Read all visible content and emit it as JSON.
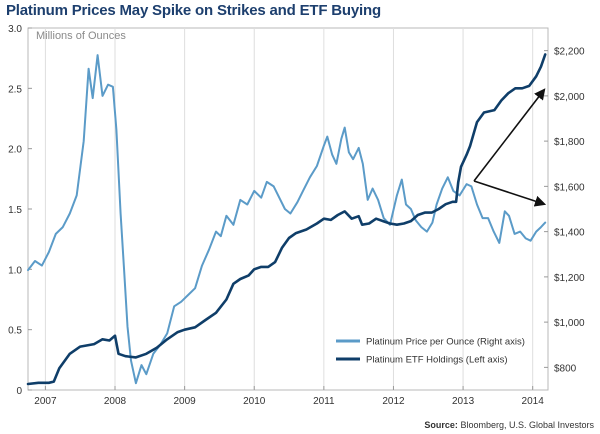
{
  "chart_data": {
    "type": "line",
    "title": "Platinum Prices May Spike on Strikes and ETF Buying",
    "ylabel_left": "Millions of Ounces",
    "ylim_left": [
      0,
      3.0
    ],
    "ylim_right": [
      700,
      2300
    ],
    "xlim": [
      2006.75,
      2014.22
    ],
    "left_ticks": [
      {
        "v": 0,
        "label": "0"
      },
      {
        "v": 0.5,
        "label": "0.5"
      },
      {
        "v": 1.0,
        "label": "1.0"
      },
      {
        "v": 1.5,
        "label": "1.5"
      },
      {
        "v": 2.0,
        "label": "2.0"
      },
      {
        "v": 2.5,
        "label": "2.5"
      },
      {
        "v": 3.0,
        "label": "3.0"
      }
    ],
    "right_ticks": [
      {
        "v": 800,
        "label": "$800"
      },
      {
        "v": 1000,
        "label": "$1,000"
      },
      {
        "v": 1200,
        "label": "$1,200"
      },
      {
        "v": 1400,
        "label": "$1,400"
      },
      {
        "v": 1600,
        "label": "$1,600"
      },
      {
        "v": 1800,
        "label": "$1,800"
      },
      {
        "v": 2000,
        "label": "$2,000"
      },
      {
        "v": 2200,
        "label": "$2,200"
      }
    ],
    "x_ticks": [
      {
        "v": 2007,
        "label": "2007"
      },
      {
        "v": 2008,
        "label": "2008"
      },
      {
        "v": 2009,
        "label": "2009"
      },
      {
        "v": 2010,
        "label": "2010"
      },
      {
        "v": 2011,
        "label": "2011"
      },
      {
        "v": 2012,
        "label": "2012"
      },
      {
        "v": 2013,
        "label": "2013"
      },
      {
        "v": 2014,
        "label": "2014"
      }
    ],
    "series": [
      {
        "name": "Platinum Price per Ounce (Right axis)",
        "axis": "right",
        "color": "#5b9bc8",
        "points": [
          [
            2006.75,
            1230
          ],
          [
            2006.85,
            1270
          ],
          [
            2006.95,
            1250
          ],
          [
            2007.05,
            1310
          ],
          [
            2007.15,
            1390
          ],
          [
            2007.25,
            1420
          ],
          [
            2007.35,
            1480
          ],
          [
            2007.45,
            1560
          ],
          [
            2007.55,
            1800
          ],
          [
            2007.62,
            2120
          ],
          [
            2007.68,
            1990
          ],
          [
            2007.75,
            2180
          ],
          [
            2007.82,
            2000
          ],
          [
            2007.9,
            2050
          ],
          [
            2007.97,
            2040
          ],
          [
            2008.02,
            1850
          ],
          [
            2008.08,
            1480
          ],
          [
            2008.13,
            1230
          ],
          [
            2008.18,
            980
          ],
          [
            2008.23,
            830
          ],
          [
            2008.3,
            730
          ],
          [
            2008.38,
            810
          ],
          [
            2008.45,
            770
          ],
          [
            2008.55,
            860
          ],
          [
            2008.65,
            900
          ],
          [
            2008.75,
            950
          ],
          [
            2008.85,
            1070
          ],
          [
            2008.95,
            1090
          ],
          [
            2009.05,
            1120
          ],
          [
            2009.15,
            1150
          ],
          [
            2009.25,
            1250
          ],
          [
            2009.35,
            1320
          ],
          [
            2009.45,
            1400
          ],
          [
            2009.52,
            1380
          ],
          [
            2009.6,
            1470
          ],
          [
            2009.7,
            1430
          ],
          [
            2009.8,
            1540
          ],
          [
            2009.9,
            1520
          ],
          [
            2010.0,
            1580
          ],
          [
            2010.1,
            1550
          ],
          [
            2010.18,
            1620
          ],
          [
            2010.28,
            1600
          ],
          [
            2010.36,
            1550
          ],
          [
            2010.44,
            1500
          ],
          [
            2010.52,
            1480
          ],
          [
            2010.62,
            1530
          ],
          [
            2010.7,
            1580
          ],
          [
            2010.8,
            1640
          ],
          [
            2010.9,
            1690
          ],
          [
            2011.0,
            1780
          ],
          [
            2011.05,
            1820
          ],
          [
            2011.12,
            1740
          ],
          [
            2011.18,
            1700
          ],
          [
            2011.25,
            1810
          ],
          [
            2011.3,
            1860
          ],
          [
            2011.36,
            1750
          ],
          [
            2011.42,
            1720
          ],
          [
            2011.5,
            1770
          ],
          [
            2011.56,
            1700
          ],
          [
            2011.63,
            1540
          ],
          [
            2011.7,
            1590
          ],
          [
            2011.78,
            1540
          ],
          [
            2011.86,
            1460
          ],
          [
            2011.95,
            1430
          ],
          [
            2012.05,
            1560
          ],
          [
            2012.12,
            1630
          ],
          [
            2012.18,
            1520
          ],
          [
            2012.25,
            1500
          ],
          [
            2012.32,
            1450
          ],
          [
            2012.4,
            1420
          ],
          [
            2012.48,
            1400
          ],
          [
            2012.56,
            1440
          ],
          [
            2012.62,
            1520
          ],
          [
            2012.7,
            1590
          ],
          [
            2012.78,
            1640
          ],
          [
            2012.86,
            1580
          ],
          [
            2012.95,
            1560
          ],
          [
            2013.05,
            1610
          ],
          [
            2013.12,
            1600
          ],
          [
            2013.2,
            1520
          ],
          [
            2013.28,
            1460
          ],
          [
            2013.36,
            1460
          ],
          [
            2013.44,
            1400
          ],
          [
            2013.52,
            1350
          ],
          [
            2013.6,
            1490
          ],
          [
            2013.66,
            1470
          ],
          [
            2013.74,
            1390
          ],
          [
            2013.82,
            1400
          ],
          [
            2013.9,
            1370
          ],
          [
            2013.97,
            1360
          ],
          [
            2014.05,
            1400
          ],
          [
            2014.12,
            1420
          ],
          [
            2014.18,
            1440
          ]
        ]
      },
      {
        "name": "Platinum ETF Holdings (Left axis)",
        "axis": "left",
        "color": "#0f3e69",
        "points": [
          [
            2006.75,
            0.05
          ],
          [
            2006.9,
            0.06
          ],
          [
            2007.05,
            0.06
          ],
          [
            2007.12,
            0.07
          ],
          [
            2007.2,
            0.18
          ],
          [
            2007.35,
            0.3
          ],
          [
            2007.5,
            0.36
          ],
          [
            2007.7,
            0.38
          ],
          [
            2007.82,
            0.42
          ],
          [
            2007.92,
            0.41
          ],
          [
            2008.0,
            0.45
          ],
          [
            2008.05,
            0.3
          ],
          [
            2008.15,
            0.28
          ],
          [
            2008.3,
            0.27
          ],
          [
            2008.45,
            0.3
          ],
          [
            2008.6,
            0.35
          ],
          [
            2008.75,
            0.42
          ],
          [
            2008.9,
            0.48
          ],
          [
            2009.0,
            0.5
          ],
          [
            2009.15,
            0.52
          ],
          [
            2009.3,
            0.58
          ],
          [
            2009.45,
            0.64
          ],
          [
            2009.6,
            0.75
          ],
          [
            2009.7,
            0.88
          ],
          [
            2009.8,
            0.92
          ],
          [
            2009.92,
            0.95
          ],
          [
            2010.0,
            1.0
          ],
          [
            2010.1,
            1.02
          ],
          [
            2010.2,
            1.02
          ],
          [
            2010.3,
            1.06
          ],
          [
            2010.4,
            1.18
          ],
          [
            2010.5,
            1.26
          ],
          [
            2010.6,
            1.3
          ],
          [
            2010.75,
            1.33
          ],
          [
            2010.9,
            1.38
          ],
          [
            2011.0,
            1.42
          ],
          [
            2011.1,
            1.41
          ],
          [
            2011.2,
            1.45
          ],
          [
            2011.3,
            1.48
          ],
          [
            2011.4,
            1.42
          ],
          [
            2011.5,
            1.44
          ],
          [
            2011.55,
            1.37
          ],
          [
            2011.65,
            1.38
          ],
          [
            2011.75,
            1.42
          ],
          [
            2011.85,
            1.4
          ],
          [
            2011.95,
            1.38
          ],
          [
            2012.05,
            1.37
          ],
          [
            2012.15,
            1.38
          ],
          [
            2012.25,
            1.4
          ],
          [
            2012.35,
            1.45
          ],
          [
            2012.45,
            1.47
          ],
          [
            2012.55,
            1.47
          ],
          [
            2012.65,
            1.5
          ],
          [
            2012.75,
            1.54
          ],
          [
            2012.85,
            1.56
          ],
          [
            2012.9,
            1.56
          ],
          [
            2012.93,
            1.72
          ],
          [
            2012.97,
            1.85
          ],
          [
            2013.05,
            1.95
          ],
          [
            2013.1,
            2.02
          ],
          [
            2013.2,
            2.22
          ],
          [
            2013.3,
            2.3
          ],
          [
            2013.45,
            2.32
          ],
          [
            2013.55,
            2.4
          ],
          [
            2013.65,
            2.46
          ],
          [
            2013.75,
            2.5
          ],
          [
            2013.85,
            2.5
          ],
          [
            2013.95,
            2.52
          ],
          [
            2014.05,
            2.6
          ],
          [
            2014.12,
            2.68
          ],
          [
            2014.18,
            2.78
          ]
        ]
      }
    ],
    "legend": [
      {
        "label": "Platinum Price per Ounce (Right axis)",
        "color": "#5b9bc8"
      },
      {
        "label": "Platinum ETF Holdings (Left axis)",
        "color": "#0f3e69"
      }
    ],
    "annotation": "arrows from ~2013 pointing up to ETF holdings and right to price",
    "source": "Source: Bloomberg, U.S. Global Investors"
  },
  "source": {
    "label": "Source:",
    "text": "Bloomberg, U.S. Global Investors"
  }
}
